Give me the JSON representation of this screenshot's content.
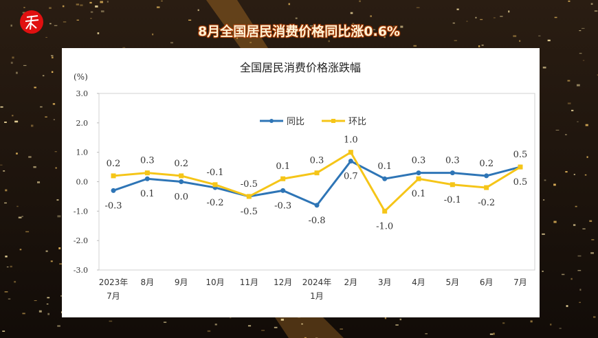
{
  "headline": "8月全国居民消费价格同比涨0.6%",
  "logo_text": "",
  "chart_data": {
    "type": "line",
    "title": "全国居民消费价格涨跌幅",
    "ylabel": "(%)",
    "ylim": [
      -3.0,
      3.0
    ],
    "yticks": [
      "3.0",
      "2.0",
      "1.0",
      "0.0",
      "-1.0",
      "-2.0",
      "-3.0"
    ],
    "categories": [
      [
        "2023年",
        "7月"
      ],
      [
        "8月"
      ],
      [
        "9月"
      ],
      [
        "10月"
      ],
      [
        "11月"
      ],
      [
        "12月"
      ],
      [
        "2024年",
        "1月"
      ],
      [
        "2月"
      ],
      [
        "3月"
      ],
      [
        "4月"
      ],
      [
        "5月"
      ],
      [
        "6月"
      ],
      [
        "7月"
      ]
    ],
    "legend_position": "top-center",
    "grid": false,
    "series": [
      {
        "name": "同比",
        "color": "#2e75b6",
        "values": [
          -0.3,
          0.1,
          0.0,
          -0.2,
          -0.5,
          -0.3,
          -0.8,
          0.7,
          0.1,
          0.3,
          0.3,
          0.2,
          0.5
        ]
      },
      {
        "name": "环比",
        "color": "#f5c518",
        "values": [
          0.2,
          0.3,
          0.2,
          -0.1,
          -0.5,
          0.1,
          0.3,
          1.0,
          -1.0,
          0.1,
          -0.1,
          -0.2,
          0.5
        ]
      }
    ]
  }
}
